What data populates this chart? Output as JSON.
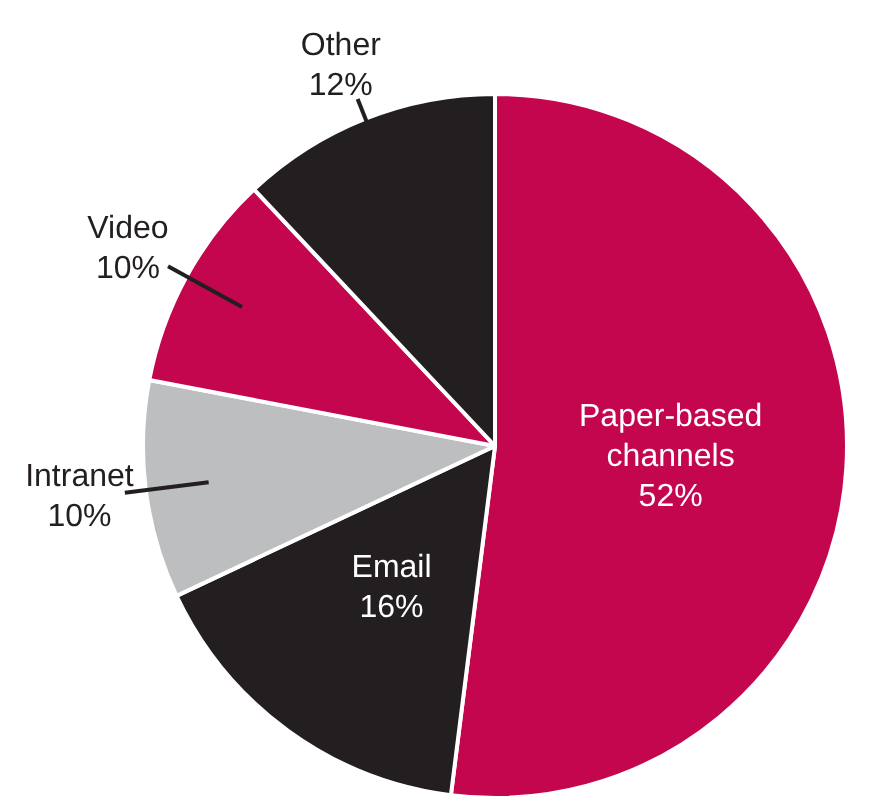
{
  "chart_data": {
    "type": "pie",
    "categories": [
      "Paper-based channels",
      "Email",
      "Intranet",
      "Video",
      "Other"
    ],
    "values": [
      52,
      16,
      10,
      10,
      12
    ],
    "colors": [
      "#c4064f",
      "#231f20",
      "#bcbec0",
      "#c4064f",
      "#231f20"
    ],
    "value_labels": [
      "52%",
      "16%",
      "10%",
      "10%",
      "12%"
    ],
    "legend": false
  }
}
